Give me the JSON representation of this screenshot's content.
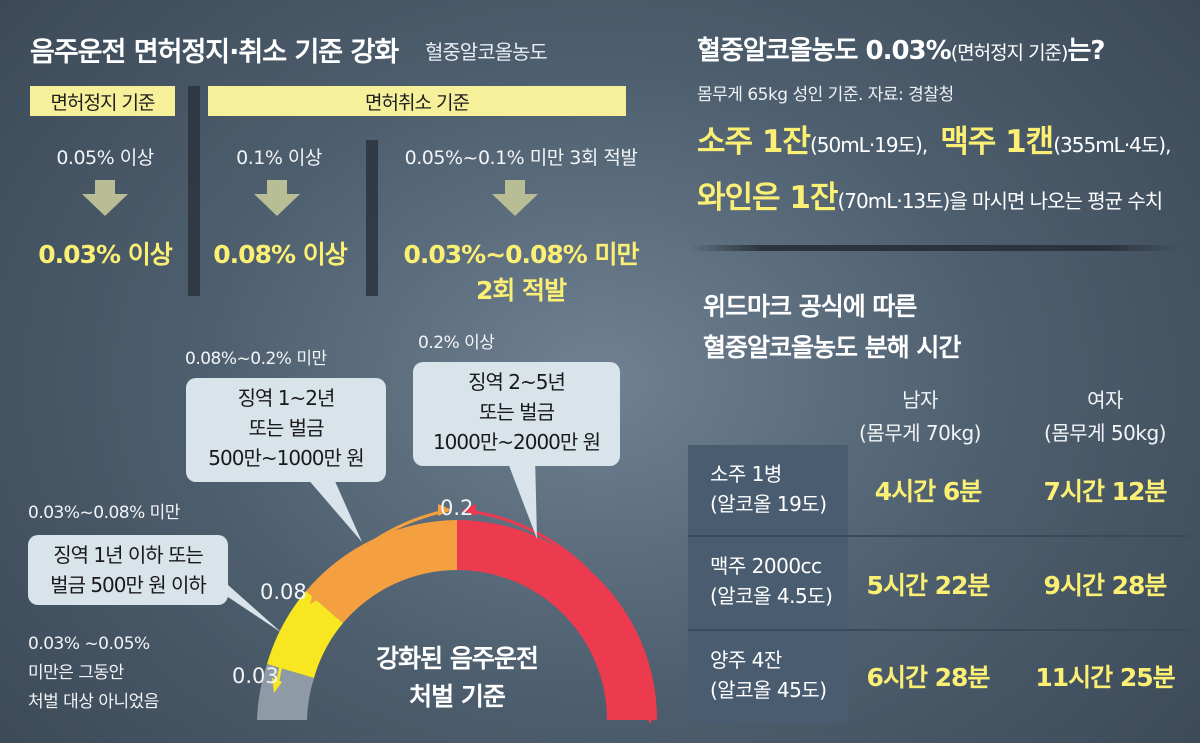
{
  "left": {
    "title": "음주운전 면허정지·취소 기준 강화",
    "subtitle": "혈중알코올농도",
    "suspension_label": "면허정지 기준",
    "revocation_label": "면허취소 기준",
    "col1_before": "0.05% 이상",
    "col1_after": "0.03% 이상",
    "col2_before": "0.1% 이상",
    "col2_after": "0.08% 이상",
    "col3_before": "0.05%~0.1% 미만 3회 적발",
    "col3_after_line1": "0.03%~0.08% 미만",
    "col3_after_line2": "2회 적발"
  },
  "gauge": {
    "center_line1": "강화된 음주운전",
    "center_line2": "처벌 기준",
    "tick_003": "0.03",
    "tick_008": "0.08",
    "tick_02": "0.2",
    "range_low_line1": "0.03% ~0.05%",
    "range_low_line2": "미만은 그동안",
    "range_low_line3": "처벌 대상 아니었음",
    "range1_label": "0.03%~0.08% 미만",
    "range1_line1": "징역 1년 이하 또는",
    "range1_line2": "벌금 500만 원 이하",
    "range2_label": "0.08%~0.2% 미만",
    "range2_line1": "징역 1~2년",
    "range2_line2": "또는 벌금",
    "range2_line3": "500만~1000만 원",
    "range3_label": "0.2% 이상",
    "range3_line1": "징역 2~5년",
    "range3_line2": "또는 벌금",
    "range3_line3": "1000만~2000만 원",
    "colors": {
      "gray": "#8e9aa6",
      "yellow": "#f7e620",
      "orange": "#f4a040",
      "red": "#ec3a4e"
    }
  },
  "right": {
    "q_title_main": "혈중알코올농도 0.03%",
    "q_title_paren": "(면허정지 기준)",
    "q_title_end": "는?",
    "source": "몸무게 65kg 성인 기준.  자료: 경찰청",
    "soju": "소주 1잔",
    "soju_detail": "(50mL·19도),",
    "beer": "맥주 1캔",
    "beer_detail": "(355mL·4도),",
    "wine": "와인은 1잔",
    "wine_detail": "(70mL·13도)을 마시면  나오는 평균 수치",
    "widmark_line1": "위드마크 공식에 따른",
    "widmark_line2": "혈중알코올농도 분해 시간",
    "col_male": "남자",
    "col_male_sub": "(몸무게 70kg)",
    "col_female": "여자",
    "col_female_sub": "(몸무게 50kg)",
    "rows": [
      {
        "name": "소주 1병",
        "sub": "(알코올 19도)",
        "male": "4시간 6분",
        "female": "7시간 12분"
      },
      {
        "name": "맥주 2000cc",
        "sub": "(알코올 4.5도)",
        "male": "5시간 22분",
        "female": "9시간 28분"
      },
      {
        "name": "양주 4잔",
        "sub": "(알코올 45도)",
        "male": "6시간 28분",
        "female": "11시간 25분"
      }
    ]
  }
}
